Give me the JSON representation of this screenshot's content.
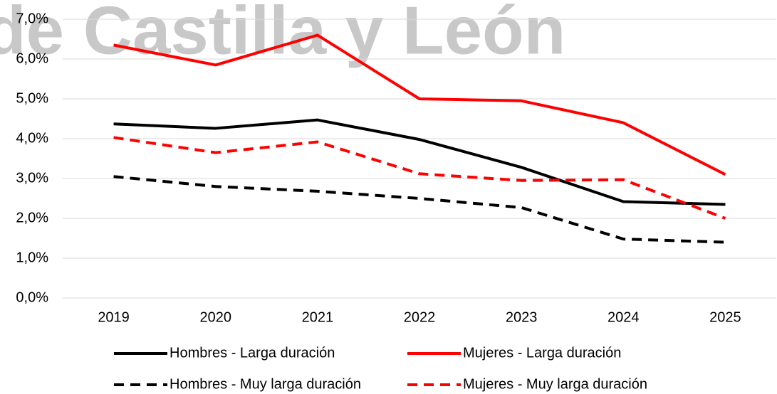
{
  "chart_data": {
    "type": "line",
    "watermark": "de Castilla y León",
    "categories": [
      "2019",
      "2020",
      "2021",
      "2022",
      "2023",
      "2024",
      "2025"
    ],
    "series": [
      {
        "name": "Hombres - Larga duración",
        "color": "#000000",
        "dashed": false,
        "values": [
          4.37,
          4.26,
          4.47,
          3.98,
          3.28,
          2.42,
          2.35
        ]
      },
      {
        "name": "Mujeres - Larga duración",
        "color": "#ff0000",
        "dashed": false,
        "values": [
          6.35,
          5.85,
          6.6,
          5.0,
          4.95,
          4.4,
          3.1
        ]
      },
      {
        "name": "Hombres - Muy larga duración",
        "color": "#000000",
        "dashed": true,
        "values": [
          3.05,
          2.8,
          2.68,
          2.5,
          2.27,
          1.48,
          1.4
        ]
      },
      {
        "name": "Mujeres - Muy larga duración",
        "color": "#ff0000",
        "dashed": true,
        "values": [
          4.03,
          3.65,
          3.92,
          3.12,
          2.95,
          2.97,
          2.0
        ]
      }
    ],
    "ylim": [
      0,
      7
    ],
    "yticks": [
      {
        "value": 0,
        "label": "0,0%"
      },
      {
        "value": 1,
        "label": "1,0%"
      },
      {
        "value": 2,
        "label": "2,0%"
      },
      {
        "value": 3,
        "label": "3,0%"
      },
      {
        "value": 4,
        "label": "4,0%"
      },
      {
        "value": 5,
        "label": "5,0%"
      },
      {
        "value": 6,
        "label": "6,0%"
      },
      {
        "value": 7,
        "label": "7,0%"
      }
    ],
    "grid": true,
    "legend": "bottom"
  }
}
